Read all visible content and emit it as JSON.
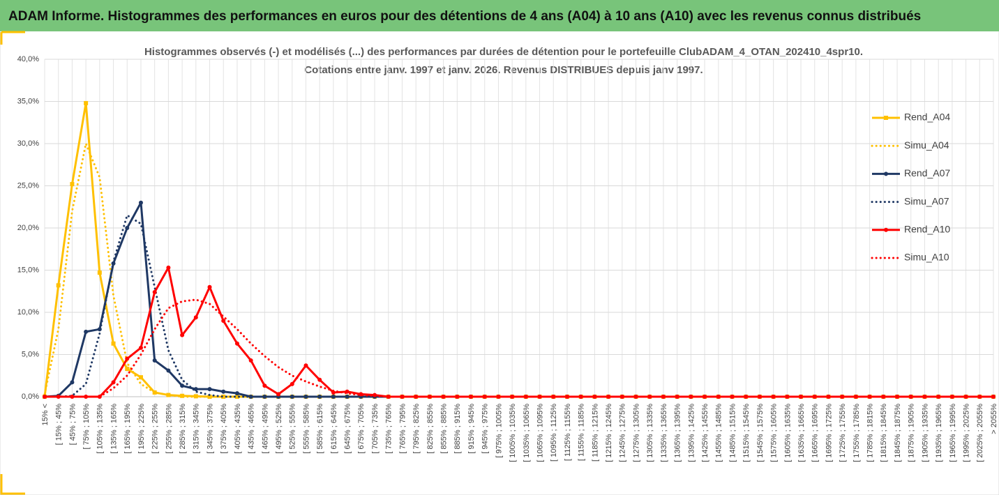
{
  "header": {
    "title": "ADAM Informe. Histogrammes des performances en euros pour des détentions de 4 ans (A04) à 10 ans (A10) avec les revenus connus distribués"
  },
  "chart_data": {
    "type": "line",
    "title": "Histogrammes observés (-) et modélisés (...) des performances par durées de détention pour le portefeuille ClubADAM_4_OTAN_202410_4spr10.",
    "subtitle": "Cotations entre janv. 1997 et janv. 2026. Revenus DISTRIBUES depuis janv 1997.",
    "categories": [
      "15% <",
      "[ 15% ; 45%",
      "[ 45% ; 75%",
      "[ 75% ; 105%",
      "[ 105% ; 135%",
      "[ 135% ; 165%",
      "[ 165% ; 195%",
      "[ 195% ; 225%",
      "[ 225% ; 255%",
      "[ 255% ; 285%",
      "[ 285% ; 315%",
      "[ 315% ; 345%",
      "[ 345% ; 375%",
      "[ 375% ; 405%",
      "[ 405% ; 435%",
      "[ 435% ; 465%",
      "[ 465% ; 495%",
      "[ 495% ; 525%",
      "[ 525% ; 555%",
      "[ 555% ; 585%",
      "[ 585% ; 615%",
      "[ 615% ; 645%",
      "[ 645% ; 675%",
      "[ 675% ; 705%",
      "[ 705% ; 735%",
      "[ 735% ; 765%",
      "[ 765% ; 795%",
      "[ 795% ; 825%",
      "[ 825% ; 855%",
      "[ 855% ; 885%",
      "[ 885% ; 915%",
      "[ 915% ; 945%",
      "[ 945% ; 975%",
      "[ 975% ; 1005%",
      "[ 1005% ; 1035%",
      "[ 1035% ; 1065%",
      "[ 1065% ; 1095%",
      "[ 1095% ; 1125%",
      "[ 1125% ; 1155%",
      "[ 1155% ; 1185%",
      "[ 1185% ; 1215%",
      "[ 1215% ; 1245%",
      "[ 1245% ; 1275%",
      "[ 1275% ; 1305%",
      "[ 1305% ; 1335%",
      "[ 1335% ; 1365%",
      "[ 1365% ; 1395%",
      "[ 1395% ; 1425%",
      "[ 1425% ; 1455%",
      "[ 1455% ; 1485%",
      "[ 1485% ; 1515%",
      "[ 1515% ; 1545%",
      "[ 1545% ; 1575%",
      "[ 1575% ; 1605%",
      "[ 1605% ; 1635%",
      "[ 1635% ; 1665%",
      "[ 1665% ; 1695%",
      "[ 1695% ; 1725%",
      "[ 1725% ; 1755%",
      "[ 1755% ; 1785%",
      "[ 1785% ; 1815%",
      "[ 1815% ; 1845%",
      "[ 1845% ; 1875%",
      "[ 1875% ; 1905%",
      "[ 1905% ; 1935%",
      "[ 1935% ; 1965%",
      "[ 1965% ; 1995%",
      "[ 1995% ; 2025%",
      "[ 2025% ; 2055%",
      "> 2055%"
    ],
    "series": [
      {
        "name": "Rend_A04",
        "color": "#ffc000",
        "dash": "solid",
        "marker": "square",
        "values": [
          0,
          13.2,
          25.2,
          34.8,
          14.7,
          6.3,
          3.3,
          2.3,
          0.5,
          0.2,
          0.1,
          0.05,
          0,
          0,
          0,
          0,
          0,
          0,
          0,
          0,
          0,
          0,
          0,
          0,
          0,
          0,
          0,
          0,
          0,
          0,
          0,
          0,
          0,
          0,
          0,
          0,
          0,
          0,
          0,
          0,
          0,
          0,
          0,
          0,
          0,
          0,
          0,
          0,
          0,
          0,
          0,
          0,
          0,
          0,
          0,
          0,
          0,
          0,
          0,
          0,
          0,
          0,
          0,
          0,
          0,
          0,
          0,
          0,
          0,
          0
        ]
      },
      {
        "name": "Simu_A04",
        "color": "#ffc000",
        "dash": "dotted",
        "marker": "none",
        "values": [
          0.3,
          8,
          22,
          30,
          26,
          12,
          4,
          1.5,
          0.5,
          0.2,
          0,
          0,
          0,
          0,
          0,
          0,
          0,
          0,
          0,
          0,
          0,
          0,
          0,
          0,
          0,
          0,
          0,
          0,
          0,
          0,
          0,
          0,
          0,
          0,
          0,
          0,
          0,
          0,
          0,
          0,
          0,
          0,
          0,
          0,
          0,
          0,
          0,
          0,
          0,
          0,
          0,
          0,
          0,
          0,
          0,
          0,
          0,
          0,
          0,
          0,
          0,
          0,
          0,
          0,
          0,
          0,
          0,
          0,
          0,
          0
        ]
      },
      {
        "name": "Rend_A07",
        "color": "#1f3864",
        "dash": "solid",
        "marker": "circle",
        "values": [
          0,
          0.1,
          1.7,
          7.7,
          8,
          15.8,
          20,
          23,
          4.3,
          3.1,
          1.3,
          0.9,
          0.9,
          0.6,
          0.4,
          0,
          0,
          0,
          0,
          0,
          0,
          0,
          0,
          0,
          0,
          0,
          0,
          0,
          0,
          0,
          0,
          0,
          0,
          0,
          0,
          0,
          0,
          0,
          0,
          0,
          0,
          0,
          0,
          0,
          0,
          0,
          0,
          0,
          0,
          0,
          0,
          0,
          0,
          0,
          0,
          0,
          0,
          0,
          0,
          0,
          0,
          0,
          0,
          0,
          0,
          0,
          0,
          0,
          0,
          0
        ]
      },
      {
        "name": "Simu_A07",
        "color": "#1f3864",
        "dash": "dotted",
        "marker": "none",
        "values": [
          0,
          0,
          0.1,
          1.5,
          7.5,
          16,
          21.5,
          20.5,
          13,
          5.5,
          2,
          0.6,
          0.2,
          0,
          0,
          0,
          0,
          0,
          0,
          0,
          0,
          0,
          0,
          0,
          0,
          0,
          0,
          0,
          0,
          0,
          0,
          0,
          0,
          0,
          0,
          0,
          0,
          0,
          0,
          0,
          0,
          0,
          0,
          0,
          0,
          0,
          0,
          0,
          0,
          0,
          0,
          0,
          0,
          0,
          0,
          0,
          0,
          0,
          0,
          0,
          0,
          0,
          0,
          0,
          0,
          0,
          0,
          0,
          0,
          0
        ]
      },
      {
        "name": "Rend_A10",
        "color": "#ff0000",
        "dash": "solid",
        "marker": "circle",
        "values": [
          0,
          0,
          0,
          0,
          0,
          1.7,
          4.5,
          5.8,
          12.4,
          15.3,
          7.3,
          9.4,
          13,
          9,
          6.3,
          4.3,
          1.3,
          0.3,
          1.5,
          3.7,
          2,
          0.5,
          0.6,
          0.3,
          0.2,
          0,
          0,
          0,
          0,
          0,
          0,
          0,
          0,
          0,
          0,
          0,
          0,
          0,
          0,
          0,
          0,
          0,
          0,
          0,
          0,
          0,
          0,
          0,
          0,
          0,
          0,
          0,
          0,
          0,
          0,
          0,
          0,
          0,
          0,
          0,
          0,
          0,
          0,
          0,
          0,
          0,
          0,
          0,
          0,
          0
        ]
      },
      {
        "name": "Simu_A10",
        "color": "#ff0000",
        "dash": "dotted",
        "marker": "none",
        "values": [
          0,
          0,
          0,
          0,
          0,
          1,
          2.5,
          5,
          8,
          10.5,
          11.3,
          11.5,
          11,
          9.5,
          8,
          6.3,
          4.8,
          3.5,
          2.5,
          1.8,
          1.2,
          0.7,
          0.4,
          0.2,
          0.1,
          0,
          0,
          0,
          0,
          0,
          0,
          0,
          0,
          0,
          0,
          0,
          0,
          0,
          0,
          0,
          0,
          0,
          0,
          0,
          0,
          0,
          0,
          0,
          0,
          0,
          0,
          0,
          0,
          0,
          0,
          0,
          0,
          0,
          0,
          0,
          0,
          0,
          0,
          0,
          0,
          0,
          0,
          0,
          0,
          0
        ]
      }
    ],
    "ylim": [
      0,
      40
    ],
    "yticks": [
      {
        "value": 0,
        "label": "0,0%"
      },
      {
        "value": 5,
        "label": "5,0%"
      },
      {
        "value": 10,
        "label": "10,0%"
      },
      {
        "value": 15,
        "label": "15,0%"
      },
      {
        "value": 20,
        "label": "20,0%"
      },
      {
        "value": 25,
        "label": "25,0%"
      },
      {
        "value": 30,
        "label": "30,0%"
      },
      {
        "value": 35,
        "label": "35,0%"
      },
      {
        "value": 40,
        "label": "40,0%"
      }
    ],
    "grid": true,
    "legend": "right"
  }
}
